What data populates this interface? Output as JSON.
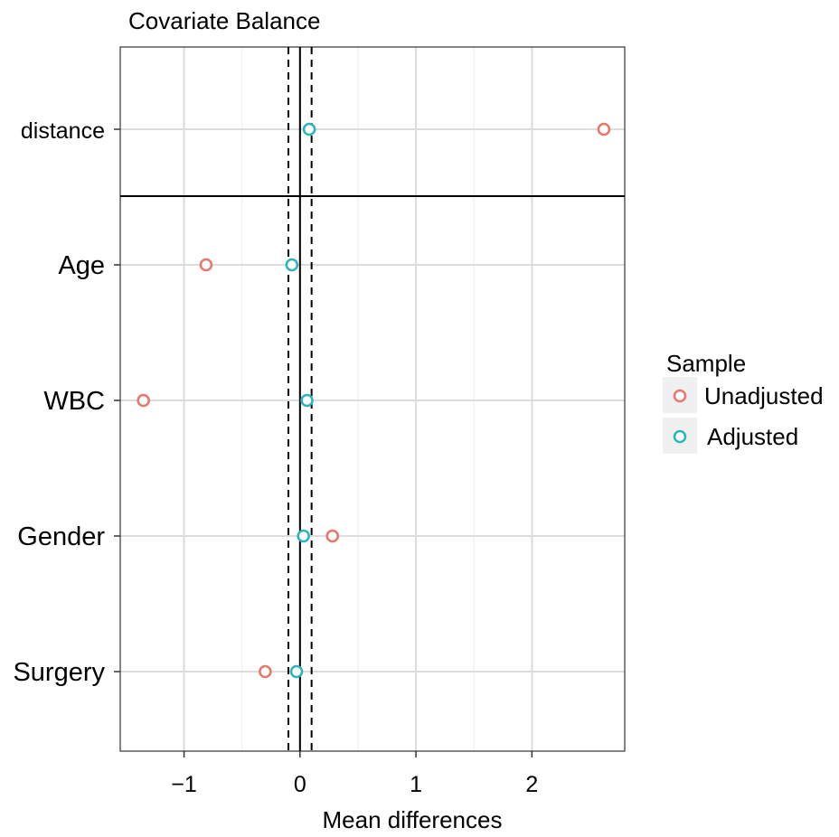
{
  "chart_data": {
    "type": "scatter",
    "title": "Covariate Balance",
    "xlabel": "Mean differences",
    "ylabel": "",
    "xlim": [
      -1.55,
      2.8
    ],
    "xticks": [
      -1,
      0,
      1,
      2
    ],
    "xtick_labels": [
      "−1",
      "0",
      "1",
      "2"
    ],
    "categories": [
      "distance",
      "Age",
      "WBC",
      "Gender",
      "Surgery"
    ],
    "separator_after": "distance",
    "reference_lines": {
      "solid": 0,
      "dashed": [
        -0.1,
        0.1
      ]
    },
    "grid": true,
    "legend": {
      "title": "Sample",
      "position": "right"
    },
    "series": [
      {
        "name": "Unadjusted",
        "color": "#E8776E",
        "values": [
          2.62,
          -0.81,
          -1.35,
          0.28,
          -0.3
        ]
      },
      {
        "name": "Adjusted",
        "color": "#2DB5BC",
        "values": [
          0.08,
          -0.07,
          0.06,
          0.03,
          -0.03
        ]
      }
    ]
  }
}
